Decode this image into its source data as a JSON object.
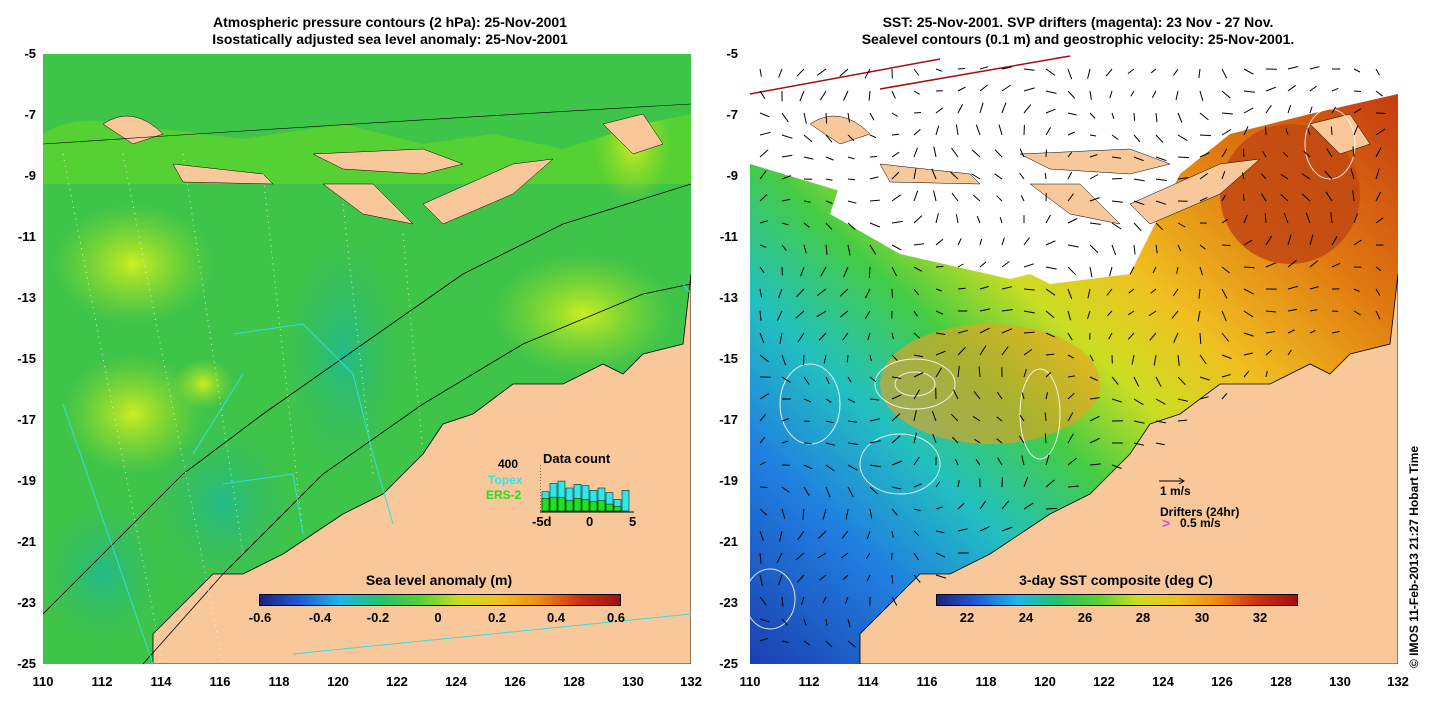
{
  "left_panel": {
    "title_line1": "Atmospheric pressure contours (2 hPa): 25-Nov-2001",
    "title_line2": "Isostatically adjusted sea level anomaly: 25-Nov-2001",
    "lat_ticks": [
      "-5",
      "-7",
      "-9",
      "-11",
      "-13",
      "-15",
      "-17",
      "-19",
      "-21",
      "-23",
      "-25"
    ],
    "lon_ticks": [
      "110",
      "112",
      "114",
      "116",
      "118",
      "120",
      "122",
      "124",
      "126",
      "128",
      "130",
      "132"
    ],
    "colorbar": {
      "title": "Sea level anomaly (m)",
      "ticks": [
        "-0.6",
        "-0.4",
        "-0.2",
        "0",
        "0.2",
        "0.4",
        "0.6"
      ]
    },
    "inset": {
      "title": "Data count",
      "ymax": "400",
      "series": [
        {
          "name": "Topex",
          "color": "#33e6e6"
        },
        {
          "name": "ERS-2",
          "color": "#22dd22"
        }
      ],
      "x_ticks": [
        "-5d",
        "0",
        "5"
      ],
      "topex_values": [
        0.42,
        0.6,
        0.65,
        0.5,
        0.58,
        0.55,
        0.45,
        0.5,
        0.4,
        0.25,
        0.45
      ],
      "ers_values": [
        0.55,
        0.6,
        0.6,
        0.45,
        0.55,
        0.5,
        0.4,
        0.45,
        0.3,
        0.2,
        0.0
      ]
    }
  },
  "right_panel": {
    "title_line1": "SST: 25-Nov-2001. SVP drifters (magenta): 23 Nov - 27 Nov.",
    "title_line2": "Sealevel contours (0.1 m) and geostrophic velocity: 25-Nov-2001.",
    "lat_ticks": [
      "-5",
      "-7",
      "-9",
      "-11",
      "-13",
      "-15",
      "-17",
      "-19",
      "-21",
      "-23",
      "-25"
    ],
    "lon_ticks": [
      "110",
      "112",
      "114",
      "116",
      "118",
      "120",
      "122",
      "124",
      "126",
      "128",
      "130",
      "132"
    ],
    "colorbar": {
      "title": "3-day SST composite (deg C)",
      "ticks": [
        "22",
        "24",
        "26",
        "28",
        "30",
        "32"
      ]
    },
    "velocity_legend": {
      "speed_label": "1 m/s",
      "drifter_title": "Drifters (24hr)",
      "drifter_speed": "0.5 m/s",
      "drifter_color": "#e040e0"
    }
  },
  "credit": "© IMOS 11-Feb-2013 21:27 Hobart Time",
  "colors": {
    "land": "#f8c89a",
    "sla_base": "#44cc33",
    "sst_cold": "#1b3fb0",
    "sst_warm": "#e07a10"
  }
}
